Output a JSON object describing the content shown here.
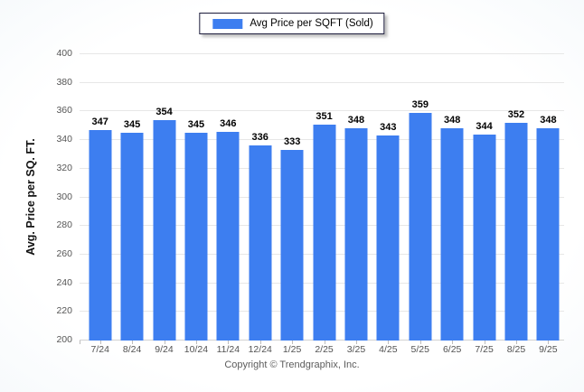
{
  "legend": {
    "label": "Avg Price per SQFT (Sold)"
  },
  "y_axis": {
    "title": "Avg. Price per SQ. FT."
  },
  "footer": {
    "copyright": "Copyright © Trendgraphix, Inc."
  },
  "colors": {
    "bar": "#3d7ef0",
    "gridline": "#e7e7e7",
    "axis_text": "#565656",
    "value_label_text": "#000000",
    "legend_border": "#1c1c3c"
  },
  "chart_data": {
    "type": "bar",
    "title": "Avg Price per SQFT (Sold)",
    "categories": [
      "7/24",
      "8/24",
      "9/24",
      "10/24",
      "11/24",
      "12/24",
      "1/25",
      "2/25",
      "3/25",
      "4/25",
      "5/25",
      "6/25",
      "7/25",
      "8/25",
      "9/25"
    ],
    "values": [
      347,
      345,
      354,
      345,
      346,
      336,
      333,
      351,
      348,
      343,
      359,
      348,
      344,
      352,
      348
    ],
    "xlabel": "",
    "ylabel": "Avg. Price per SQ. FT.",
    "ylim": [
      200,
      400
    ],
    "ytick_step": 20,
    "grid": true,
    "legend_position": "top-center",
    "bar_value_labels": true
  }
}
